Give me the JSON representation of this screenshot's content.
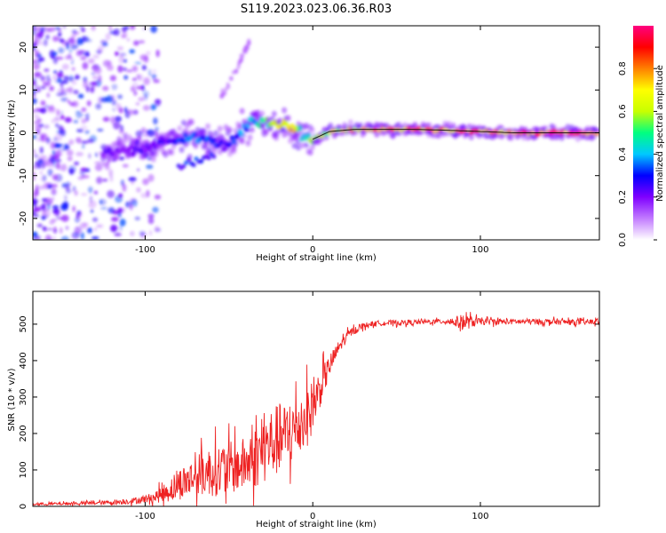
{
  "figure": {
    "title": "S119.2023.023.06.36.R03"
  },
  "chart_data": [
    {
      "type": "heatmap",
      "xlabel": "Height of straight line (km)",
      "ylabel": "Frequency (Hz)",
      "xlim": [
        -167,
        171
      ],
      "ylim": [
        -25,
        25
      ],
      "x_ticks": [
        -100,
        0,
        100
      ],
      "y_ticks": [
        -20,
        -10,
        0,
        10,
        20
      ],
      "grid": false,
      "ridge": {
        "x": [
          -125,
          -115,
          -105,
          -95,
          -85,
          -78,
          -70,
          -62,
          -55,
          -48,
          -42,
          -36,
          -30,
          -24,
          -18,
          -12,
          -6,
          0,
          10,
          25,
          40,
          60,
          80,
          100,
          120,
          140,
          160,
          171
        ],
        "frequency": [
          -4.5,
          -4,
          -3.5,
          -3,
          -2,
          -1.5,
          -0.5,
          -2,
          -3,
          -2,
          0.5,
          2.8,
          2.2,
          2,
          1.8,
          1.2,
          -0.5,
          -1.5,
          0.3,
          0.8,
          0.8,
          0.8,
          0.6,
          0.3,
          0,
          0,
          0,
          0
        ],
        "amplitude": [
          0.25,
          0.2,
          0.25,
          0.25,
          0.3,
          0.35,
          0.4,
          0.35,
          0.3,
          0.35,
          0.4,
          0.45,
          0.5,
          0.6,
          0.75,
          0.8,
          0.55,
          0.6,
          0.7,
          0.8,
          0.85,
          0.88,
          0.9,
          0.92,
          0.93,
          0.95,
          0.95,
          0.95
        ]
      },
      "secondary_ridge": {
        "x": [
          -80,
          -72,
          -65,
          -58
        ],
        "frequency": [
          -8,
          -7,
          -6,
          -5
        ]
      },
      "faint_branch": {
        "x": [
          -55,
          -48,
          -42,
          -37
        ],
        "frequency": [
          8,
          13,
          18,
          22
        ]
      },
      "colorbar": {
        "label": "Normalized spectral amplitude",
        "ticks": [
          "0.0",
          "0.2",
          "0.4",
          "0.6",
          "0.8"
        ],
        "range": [
          0,
          1
        ],
        "colors": [
          "#ffffff",
          "#c27bff",
          "#7f00ff",
          "#0000ff",
          "#00c8ff",
          "#00ff80",
          "#c8ff00",
          "#ffff00",
          "#ff8000",
          "#ff0000",
          "#ff0080"
        ]
      }
    },
    {
      "type": "line",
      "xlabel": "Height of straight line (km)",
      "ylabel": "SNR (10 * v/v)",
      "xlim": [
        -167,
        171
      ],
      "ylim": [
        0,
        590
      ],
      "x_ticks": [
        -100,
        0,
        100
      ],
      "y_ticks": [
        0,
        100,
        200,
        300,
        400,
        500
      ],
      "grid": false,
      "series": [
        {
          "color": "#ee2222",
          "x": [
            -167,
            -140,
            -125,
            -115,
            -105,
            -95,
            -88,
            -82,
            -75,
            -68,
            -62,
            -56,
            -50,
            -44,
            -38,
            -32,
            -26,
            -20,
            -14,
            -8,
            -2,
            4,
            10,
            16,
            22,
            28,
            34,
            40,
            60,
            80,
            90,
            100,
            120,
            140,
            160,
            171
          ],
          "mean": [
            6,
            8,
            10,
            12,
            16,
            24,
            38,
            55,
            72,
            86,
            95,
            100,
            105,
            110,
            120,
            145,
            170,
            185,
            195,
            225,
            255,
            320,
            385,
            440,
            475,
            492,
            500,
            503,
            505,
            508,
            505,
            507,
            507,
            507,
            505,
            507
          ],
          "noise": [
            4,
            5,
            6,
            8,
            10,
            16,
            30,
            45,
            55,
            65,
            75,
            80,
            80,
            80,
            85,
            100,
            110,
            110,
            105,
            100,
            90,
            60,
            35,
            20,
            14,
            10,
            8,
            8,
            8,
            8,
            25,
            10,
            9,
            9,
            9,
            9
          ]
        }
      ]
    }
  ]
}
